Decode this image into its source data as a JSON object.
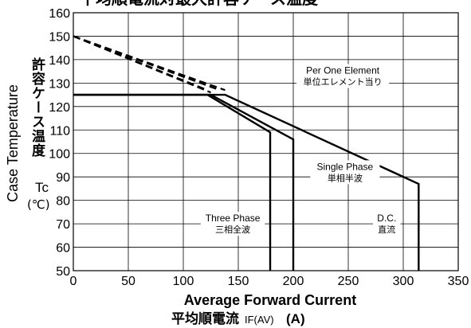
{
  "chart_data": {
    "type": "line",
    "title": "平均順電流対最大許容ケース温度",
    "xlabel": "Average Forward Current",
    "xlabel_jp": "平均順電流",
    "xlabel_symbol": "IF(AV)",
    "xlabel_unit": "(A)",
    "ylabel": "Case Temperature",
    "ylabel_jp": "許容ケース温度",
    "ylabel_symbol": "Tc",
    "ylabel_unit": "(℃)",
    "xlim": [
      0,
      350
    ],
    "ylim": [
      50,
      160
    ],
    "xticks": [
      0,
      50,
      100,
      150,
      200,
      250,
      300,
      350
    ],
    "yticks": [
      50,
      60,
      70,
      80,
      90,
      100,
      110,
      120,
      130,
      140,
      150,
      160
    ],
    "grid": true,
    "series": [
      {
        "name": "Three Phase",
        "name_jp": "三相全波",
        "points": [
          [
            0,
            125
          ],
          [
            122,
            125
          ],
          [
            179,
            109
          ],
          [
            179,
            50
          ]
        ]
      },
      {
        "name": "Single Phase",
        "name_jp": "単相半波",
        "points": [
          [
            0,
            125
          ],
          [
            125,
            125
          ],
          [
            200,
            106
          ],
          [
            200,
            50
          ]
        ]
      },
      {
        "name": "D.C.",
        "name_jp": "直流",
        "points": [
          [
            0,
            125
          ],
          [
            138,
            125
          ],
          [
            314,
            87
          ],
          [
            314,
            50
          ]
        ]
      }
    ],
    "dashed_lines": [
      {
        "points": [
          [
            0,
            150
          ],
          [
            122,
            127
          ]
        ]
      },
      {
        "points": [
          [
            0,
            150
          ],
          [
            125,
            126
          ]
        ]
      },
      {
        "points": [
          [
            0,
            150
          ],
          [
            133,
            127
          ]
        ]
      },
      {
        "points": [
          [
            0,
            150
          ],
          [
            138,
            127
          ]
        ]
      }
    ],
    "annotations": [
      {
        "text": "Per One Element",
        "text2": "単位エレメント当り",
        "x": 245,
        "y": 134
      },
      {
        "text": "Single Phase",
        "text2": "単相半波",
        "x": 247,
        "y": 93
      },
      {
        "text": "Three Phase",
        "text2": "三相全波",
        "x": 145,
        "y": 71
      },
      {
        "text": "D.C.",
        "text2": "直流",
        "x": 285,
        "y": 71
      }
    ]
  }
}
